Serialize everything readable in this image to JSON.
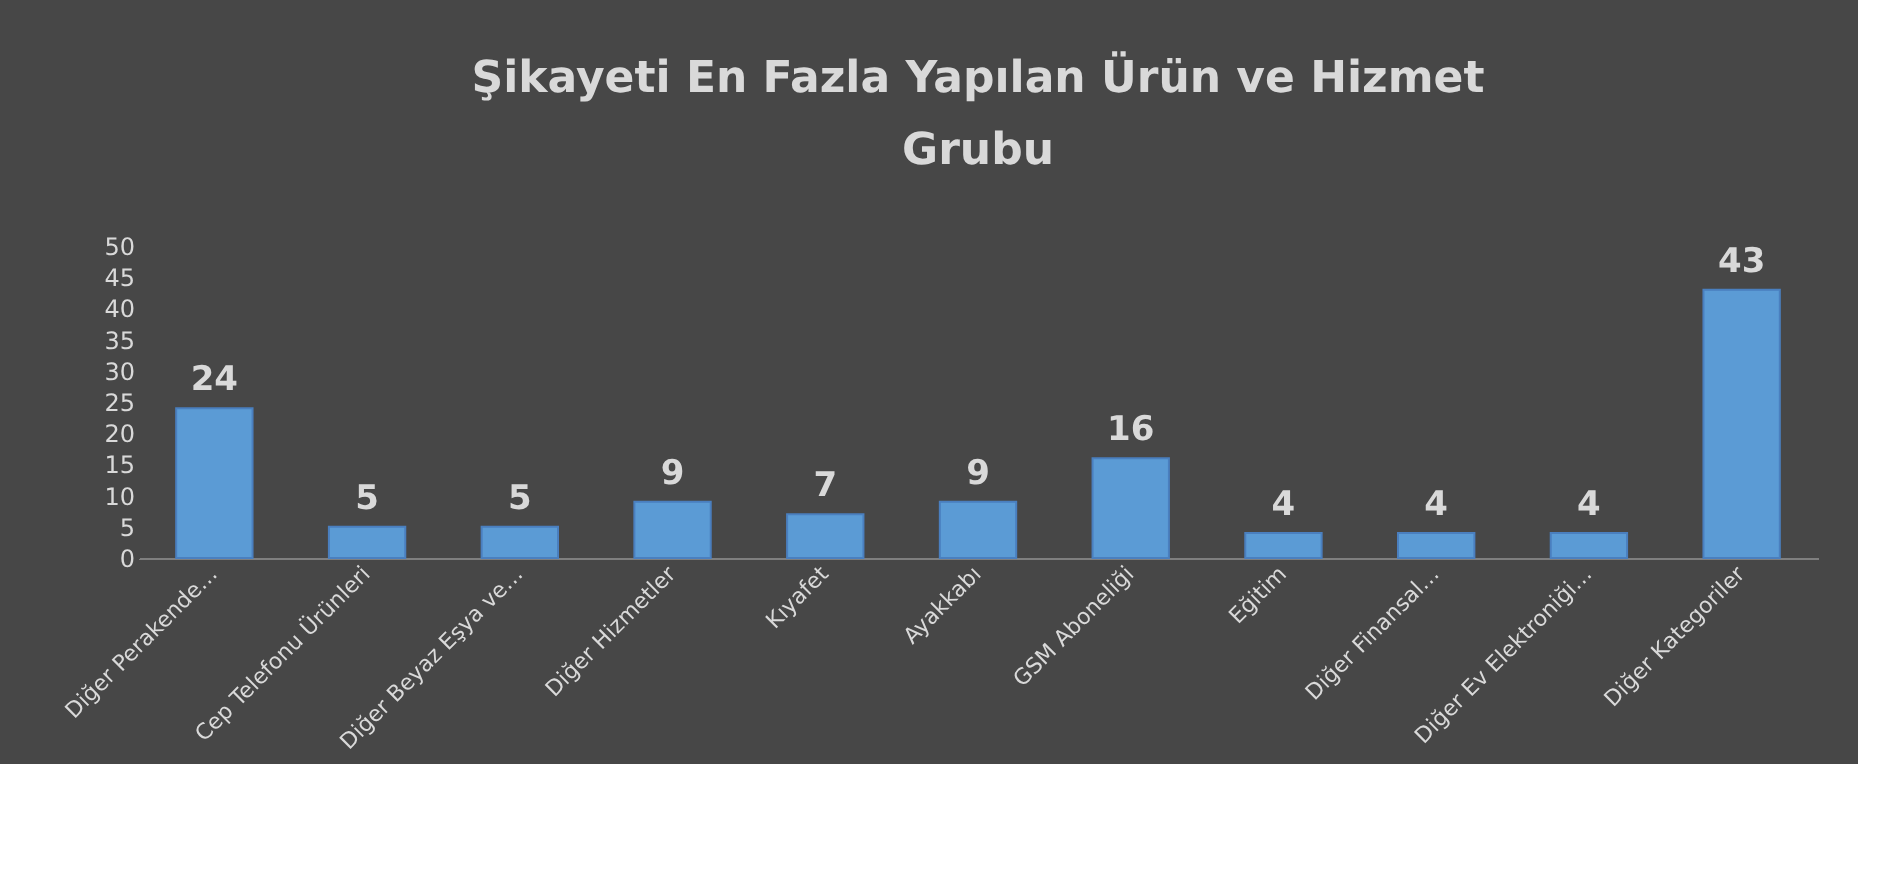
{
  "chart_data": {
    "type": "bar",
    "title": "Şikayeti En Fazla Yapılan Ürün ve Hizmet\nGrubu",
    "categories": [
      "Diğer Perakende…",
      "Cep Telefonu Ürünleri",
      "Diğer Beyaz Eşya ve…",
      "Diğer Hizmetler",
      "Kıyafet",
      "Ayakkabı",
      "GSM Aboneliği",
      "Eğitim",
      "Diğer Finansal…",
      "Diğer Ev Elektroniği…",
      "Diğer Kategoriler"
    ],
    "values": [
      24,
      5,
      5,
      9,
      7,
      9,
      16,
      4,
      4,
      4,
      43
    ],
    "color": "#5b9bd5",
    "ylim": [
      0,
      50
    ],
    "yticks": [
      0,
      5,
      10,
      15,
      20,
      25,
      30,
      35,
      40,
      45,
      50
    ],
    "grid": false,
    "data_labels": true
  }
}
